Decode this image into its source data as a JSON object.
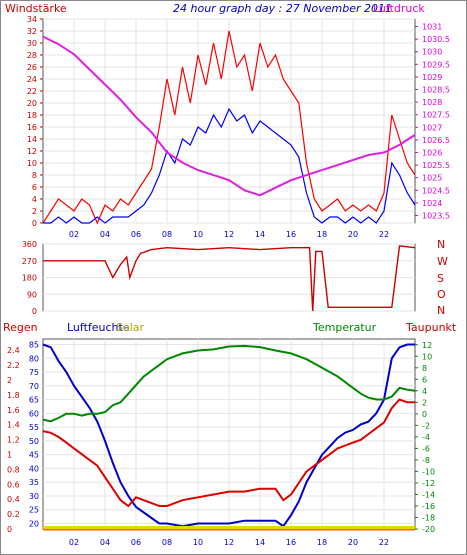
{
  "chart_data": [
    {
      "type": "line",
      "title": "24 hour graph day : 27 November 2011",
      "left_label": "Windstärke",
      "right_label": "Luftdruck",
      "left_ticks": [
        "0",
        "2",
        "4",
        "6",
        "8",
        "10",
        "12",
        "14",
        "16",
        "18",
        "20",
        "22",
        "24",
        "26",
        "28",
        "30",
        "32",
        "34"
      ],
      "left_range": [
        0,
        34
      ],
      "right_ticks": [
        "1023.5",
        "1024",
        "1024.5",
        "1025",
        "1025.5",
        "1026",
        "1026.5",
        "1027",
        "1027.5",
        "1028",
        "1028.5",
        "1029",
        "1029.5",
        "1030",
        "1030.5",
        "1031"
      ],
      "right_range": [
        1023.2,
        1031.3
      ],
      "x_ticks": [
        "02",
        "04",
        "06",
        "08",
        "10",
        "12",
        "14",
        "16",
        "18",
        "20",
        "22"
      ],
      "x_range": [
        0,
        24
      ],
      "series": [
        {
          "key": "gust",
          "color": "#ff0000",
          "x": [
            0,
            0.5,
            1,
            1.5,
            2,
            2.5,
            3,
            3.5,
            4,
            4.5,
            5,
            5.5,
            6,
            6.5,
            7,
            7.5,
            8,
            8.5,
            9,
            9.5,
            10,
            10.5,
            11,
            11.5,
            12,
            12.5,
            13,
            13.5,
            14,
            14.5,
            15,
            15.5,
            16,
            16.5,
            17,
            17.5,
            18,
            18.5,
            19,
            19.5,
            20,
            20.5,
            21,
            21.5,
            22,
            22.5,
            23,
            23.5,
            24
          ],
          "values": [
            0,
            2,
            4,
            3,
            2,
            4,
            3,
            0,
            3,
            2,
            4,
            3,
            5,
            7,
            9,
            16,
            24,
            18,
            26,
            20,
            28,
            23,
            30,
            24,
            32,
            26,
            28,
            22,
            30,
            26,
            28,
            24,
            22,
            20,
            10,
            4,
            2,
            3,
            4,
            2,
            3,
            2,
            3,
            2,
            5,
            18,
            14,
            10,
            8
          ]
        },
        {
          "key": "mean",
          "color": "#0000ff",
          "x": [
            0,
            0.5,
            1,
            1.5,
            2,
            2.5,
            3,
            3.5,
            4,
            4.5,
            5,
            5.5,
            6,
            6.5,
            7,
            7.5,
            8,
            8.5,
            9,
            9.5,
            10,
            10.5,
            11,
            11.5,
            12,
            12.5,
            13,
            13.5,
            14,
            14.5,
            15,
            15.5,
            16,
            16.5,
            17,
            17.5,
            18,
            18.5,
            19,
            19.5,
            20,
            20.5,
            21,
            21.5,
            22,
            22.5,
            23,
            23.5,
            24
          ],
          "values": [
            0,
            0,
            1,
            0,
            1,
            0,
            0,
            1,
            0,
            1,
            1,
            1,
            2,
            3,
            5,
            8,
            12,
            10,
            14,
            13,
            16,
            15,
            18,
            16,
            19,
            17,
            18,
            15,
            17,
            16,
            15,
            14,
            13,
            11,
            5,
            1,
            0,
            1,
            1,
            0,
            1,
            0,
            1,
            0,
            2,
            10,
            8,
            5,
            3
          ]
        },
        {
          "key": "pressure",
          "color": "#e020e0",
          "axis": "right",
          "x": [
            0,
            1,
            2,
            3,
            4,
            5,
            6,
            7,
            8,
            9,
            10,
            11,
            12,
            13,
            14,
            15,
            16,
            17,
            18,
            19,
            20,
            21,
            22,
            23,
            24
          ],
          "values": [
            1030.6,
            1030.3,
            1029.9,
            1029.3,
            1028.7,
            1028.1,
            1027.4,
            1026.8,
            1026.0,
            1025.6,
            1025.3,
            1025.1,
            1024.9,
            1024.5,
            1024.3,
            1024.6,
            1024.9,
            1025.1,
            1025.3,
            1025.5,
            1025.7,
            1025.9,
            1026.0,
            1026.3,
            1026.7
          ]
        }
      ]
    },
    {
      "type": "line",
      "left_ticks": [
        "0",
        "90",
        "180",
        "270",
        "360"
      ],
      "left_range": [
        0,
        360
      ],
      "right_ticks": [
        "N",
        "W",
        "S",
        "O",
        "N"
      ],
      "x_range": [
        0,
        24
      ],
      "series": [
        {
          "key": "direction",
          "color": "#cc0000",
          "x": [
            0,
            3,
            4,
            4.5,
            5,
            5.4,
            5.6,
            6,
            6.3,
            7,
            8,
            10,
            12,
            14,
            16,
            17.2,
            17.4,
            17.6,
            18,
            18.4,
            18.6,
            19,
            22.5,
            23,
            24
          ],
          "values": [
            270,
            270,
            270,
            180,
            250,
            290,
            180,
            270,
            310,
            330,
            340,
            330,
            340,
            330,
            340,
            340,
            0,
            320,
            320,
            20,
            20,
            20,
            20,
            350,
            340
          ]
        }
      ]
    },
    {
      "type": "line",
      "legend": [
        "Regen",
        "Luftfeuchte",
        "Solar",
        "Temperatur",
        "Taupunkt"
      ],
      "left_ticks": [
        "0",
        "0.2",
        "0.4",
        "0.6",
        "0.8",
        "1",
        "1.2",
        "1.4",
        "1.6",
        "1.8",
        "2",
        "2.2",
        "2.4"
      ],
      "left_range": [
        0,
        2.55
      ],
      "humidity_ticks": [
        "20",
        "25",
        "30",
        "35",
        "40",
        "45",
        "50",
        "55",
        "60",
        "65",
        "70",
        "75",
        "80",
        "85"
      ],
      "humidity_range": [
        18,
        87
      ],
      "right_ticks": [
        "-20",
        "-18",
        "-16",
        "-14",
        "-12",
        "-10",
        "-8",
        "-6",
        "-4",
        "-2",
        "0",
        "2",
        "4",
        "6",
        "8",
        "10",
        "12"
      ],
      "right_range": [
        -20,
        13
      ],
      "x_ticks": [
        "02",
        "04",
        "06",
        "08",
        "10",
        "12",
        "14",
        "16",
        "18",
        "20",
        "22"
      ],
      "x_range": [
        0,
        24
      ],
      "series": [
        {
          "key": "humidity",
          "color": "#0000cc",
          "axis": "humidity",
          "x": [
            0,
            0.5,
            1,
            1.5,
            2,
            2.5,
            3,
            3.5,
            4,
            4.5,
            5,
            5.5,
            6,
            6.5,
            7,
            7.5,
            8,
            9,
            10,
            11,
            12,
            13,
            14,
            15,
            15.5,
            16,
            16.5,
            17,
            17.5,
            18,
            18.5,
            19,
            19.5,
            20,
            20.5,
            21,
            21.5,
            22,
            22.5,
            23,
            23.5,
            24
          ],
          "values": [
            85,
            84,
            79,
            75,
            70,
            66,
            62,
            57,
            50,
            42,
            35,
            30,
            26,
            24,
            22,
            20,
            20,
            19,
            20,
            20,
            20,
            21,
            21,
            21,
            19,
            23,
            28,
            35,
            40,
            45,
            48,
            51,
            53,
            54,
            56,
            57,
            60,
            65,
            80,
            84,
            85,
            85
          ]
        },
        {
          "key": "temperature",
          "color": "#008800",
          "axis": "right",
          "x": [
            0,
            0.5,
            1,
            1.5,
            2,
            2.5,
            3,
            3.5,
            4,
            4.5,
            5,
            5.5,
            6,
            6.5,
            7,
            7.5,
            8,
            9,
            10,
            11,
            12,
            13,
            14,
            15,
            16,
            17,
            18,
            19,
            20,
            20.5,
            21,
            21.5,
            22,
            22.5,
            23,
            23.5,
            24
          ],
          "values": [
            -1,
            -1.3,
            -0.7,
            0,
            0,
            -0.3,
            0,
            0,
            0.3,
            1.5,
            2,
            3.5,
            5,
            6.5,
            7.5,
            8.5,
            9.5,
            10.5,
            11,
            11.2,
            11.7,
            11.8,
            11.6,
            11,
            10.5,
            9.5,
            8,
            6.5,
            4.5,
            3.5,
            2.8,
            2.5,
            2.5,
            3,
            4.5,
            4.2,
            4
          ]
        },
        {
          "key": "dewpoint",
          "color": "#dd0000",
          "axis": "right",
          "x": [
            0,
            0.5,
            1,
            1.5,
            2,
            2.5,
            3,
            3.5,
            4,
            4.5,
            5,
            5.5,
            6,
            6.5,
            7,
            7.5,
            8,
            9,
            10,
            11,
            12,
            13,
            14,
            15,
            15.5,
            16,
            16.5,
            17,
            17.5,
            18,
            18.5,
            19,
            19.5,
            20,
            20.5,
            21,
            21.5,
            22,
            22.5,
            23,
            23.5,
            24
          ],
          "values": [
            -3,
            -3.3,
            -4,
            -5,
            -6,
            -7,
            -8,
            -9,
            -11,
            -13,
            -15,
            -16,
            -14.5,
            -15,
            -15.5,
            -16,
            -16,
            -15,
            -14.5,
            -14,
            -13.5,
            -13.5,
            -13,
            -13,
            -15,
            -14,
            -12,
            -10,
            -9,
            -8,
            -7,
            -6,
            -5.5,
            -5,
            -4.5,
            -3.5,
            -2.5,
            -1.5,
            1,
            2.5,
            2,
            2
          ]
        },
        {
          "key": "rain",
          "color": "#ff6600",
          "axis": "left",
          "x": [
            0,
            24
          ],
          "values": [
            0,
            0
          ]
        },
        {
          "key": "solar",
          "color": "#dddd00",
          "axis": "left",
          "x": [
            0,
            24
          ],
          "values": [
            0.02,
            0.02
          ]
        }
      ]
    }
  ]
}
